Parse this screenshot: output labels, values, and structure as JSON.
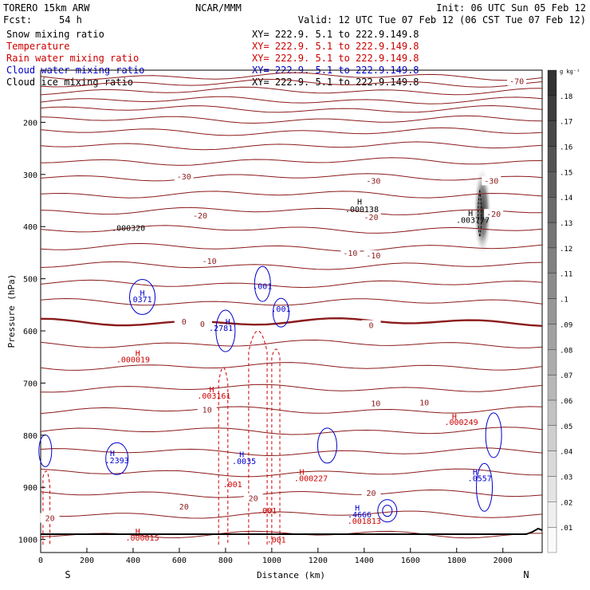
{
  "header": {
    "model": "TORERO  15km ARW",
    "center": "NCAR/MMM",
    "init": "Init: 06 UTC Sun 05 Feb 12",
    "fcst_label": "Fcst:",
    "fcst_value": "54 h",
    "valid": "Valid: 12 UTC Tue 07 Feb 12 (06 CST Tue 07 Feb 12)"
  },
  "fields": [
    {
      "name": "Snow mixing ratio",
      "xy": "XY= 222.9.  5.1 to 222.9.149.8",
      "color": "#000000"
    },
    {
      "name": "Temperature",
      "xy": "XY= 222.9.  5.1 to 222.9.149.8",
      "color": "#cc0000"
    },
    {
      "name": "Rain water mixing ratio",
      "xy": "XY= 222.9.  5.1 to 222.9.149.8",
      "color": "#cc0000"
    },
    {
      "name": "Cloud water mixing ratio",
      "xy": "XY= 222.9.  5.1 to 222.9.149.8",
      "color": "#0000cc"
    },
    {
      "name": "Cloud ice mixing ratio",
      "xy": "XY= 222.9.  5.1 to 222.9.149.8",
      "color": "#000000"
    }
  ],
  "chart_data": {
    "type": "cross-section contour",
    "xlabel": "Distance (km)",
    "ylabel": "Pressure (hPa)",
    "x_ticks": [
      0,
      200,
      400,
      600,
      800,
      1000,
      1200,
      1400,
      1600,
      1800,
      2000
    ],
    "y_ticks": [
      200,
      300,
      400,
      500,
      600,
      700,
      800,
      900,
      1000
    ],
    "xlim": [
      0,
      2170
    ],
    "ylim": [
      1025,
      100
    ],
    "end_labels": {
      "left": "S",
      "right": "N"
    },
    "colorbar": {
      "unit": "g kg⁻¹",
      "ticks": [
        ".01",
        ".02",
        ".03",
        ".04",
        ".05",
        ".06",
        ".07",
        ".08",
        ".09",
        ".1",
        ".11",
        ".12",
        ".13",
        ".14",
        ".15",
        ".16",
        ".17",
        ".18"
      ]
    },
    "isotherm_labels": [
      {
        "text": "-70",
        "x": 2060,
        "p": 122
      },
      {
        "text": "-30",
        "x": 620,
        "p": 305
      },
      {
        "text": "-30",
        "x": 1440,
        "p": 313
      },
      {
        "text": "-30",
        "x": 1950,
        "p": 313
      },
      {
        "text": "-20",
        "x": 690,
        "p": 380
      },
      {
        "text": "-20",
        "x": 1430,
        "p": 383
      },
      {
        "text": "-20",
        "x": 1960,
        "p": 377
      },
      {
        "text": "-10",
        "x": 730,
        "p": 467
      },
      {
        "text": "-10",
        "x": 1340,
        "p": 452
      },
      {
        "text": "-10",
        "x": 1440,
        "p": 456
      },
      {
        "text": "0",
        "x": 620,
        "p": 583
      },
      {
        "text": "0",
        "x": 700,
        "p": 588
      },
      {
        "text": "0",
        "x": 1430,
        "p": 590
      },
      {
        "text": "10",
        "x": 720,
        "p": 752
      },
      {
        "text": "10",
        "x": 1450,
        "p": 740
      },
      {
        "text": "10",
        "x": 1660,
        "p": 738
      },
      {
        "text": "20",
        "x": 620,
        "p": 938
      },
      {
        "text": "20",
        "x": 920,
        "p": 922
      },
      {
        "text": "20",
        "x": 1430,
        "p": 912
      },
      {
        "text": "20",
        "x": 40,
        "p": 960
      }
    ],
    "extrema_labels": [
      {
        "text": ".0371",
        "x": 430,
        "p": 545,
        "color": "#0000cc"
      },
      {
        "text": ".000320",
        "x": 380,
        "p": 408,
        "color": "#000000"
      },
      {
        "text": ".000138",
        "x": 1390,
        "p": 372,
        "color": "#000000"
      },
      {
        "text": ".003777",
        "x": 1870,
        "p": 393,
        "color": "#000000"
      },
      {
        "text": ".001",
        "x": 960,
        "p": 520,
        "color": "#0000cc"
      },
      {
        "text": ".001",
        "x": 1040,
        "p": 563,
        "color": "#0000cc"
      },
      {
        "text": ".2781",
        "x": 780,
        "p": 600,
        "color": "#0000cc"
      },
      {
        "text": ".000019",
        "x": 400,
        "p": 660,
        "color": "#cc0000"
      },
      {
        "text": ".003161",
        "x": 750,
        "p": 730,
        "color": "#cc0000"
      },
      {
        "text": ".000249",
        "x": 1820,
        "p": 780,
        "color": "#cc0000"
      },
      {
        "text": ".2393",
        "x": 330,
        "p": 854,
        "color": "#0000cc"
      },
      {
        "text": ".0035",
        "x": 880,
        "p": 855,
        "color": "#0000cc"
      },
      {
        "text": ".000227",
        "x": 1170,
        "p": 888,
        "color": "#cc0000"
      },
      {
        "text": ".0557",
        "x": 1900,
        "p": 888,
        "color": "#0000cc"
      },
      {
        "text": ".001",
        "x": 830,
        "p": 900,
        "color": "#cc0000"
      },
      {
        "text": ".001",
        "x": 980,
        "p": 950,
        "color": "#cc0000"
      },
      {
        "text": ".4666",
        "x": 1380,
        "p": 958,
        "color": "#0000cc"
      },
      {
        "text": ".001813",
        "x": 1400,
        "p": 970,
        "color": "#cc0000"
      },
      {
        "text": ".000015",
        "x": 440,
        "p": 1002,
        "color": "#cc0000"
      },
      {
        "text": ".001",
        "x": 1020,
        "p": 1006,
        "color": "#cc0000"
      }
    ],
    "H_marks": [
      {
        "x": 440,
        "p": 533,
        "color": "#0000cc"
      },
      {
        "x": 1380,
        "p": 358,
        "color": "#000000"
      },
      {
        "x": 1860,
        "p": 380,
        "color": "#000000"
      },
      {
        "x": 810,
        "p": 588,
        "color": "#0000cc"
      },
      {
        "x": 420,
        "p": 648,
        "color": "#cc0000"
      },
      {
        "x": 740,
        "p": 718,
        "color": "#cc0000"
      },
      {
        "x": 1790,
        "p": 770,
        "color": "#cc0000"
      },
      {
        "x": 310,
        "p": 840,
        "color": "#0000cc"
      },
      {
        "x": 870,
        "p": 842,
        "color": "#0000cc"
      },
      {
        "x": 1130,
        "p": 876,
        "color": "#cc0000"
      },
      {
        "x": 1880,
        "p": 876,
        "color": "#0000cc"
      },
      {
        "x": 1370,
        "p": 945,
        "color": "#0000cc"
      },
      {
        "x": 420,
        "p": 990,
        "color": "#cc0000"
      }
    ]
  }
}
